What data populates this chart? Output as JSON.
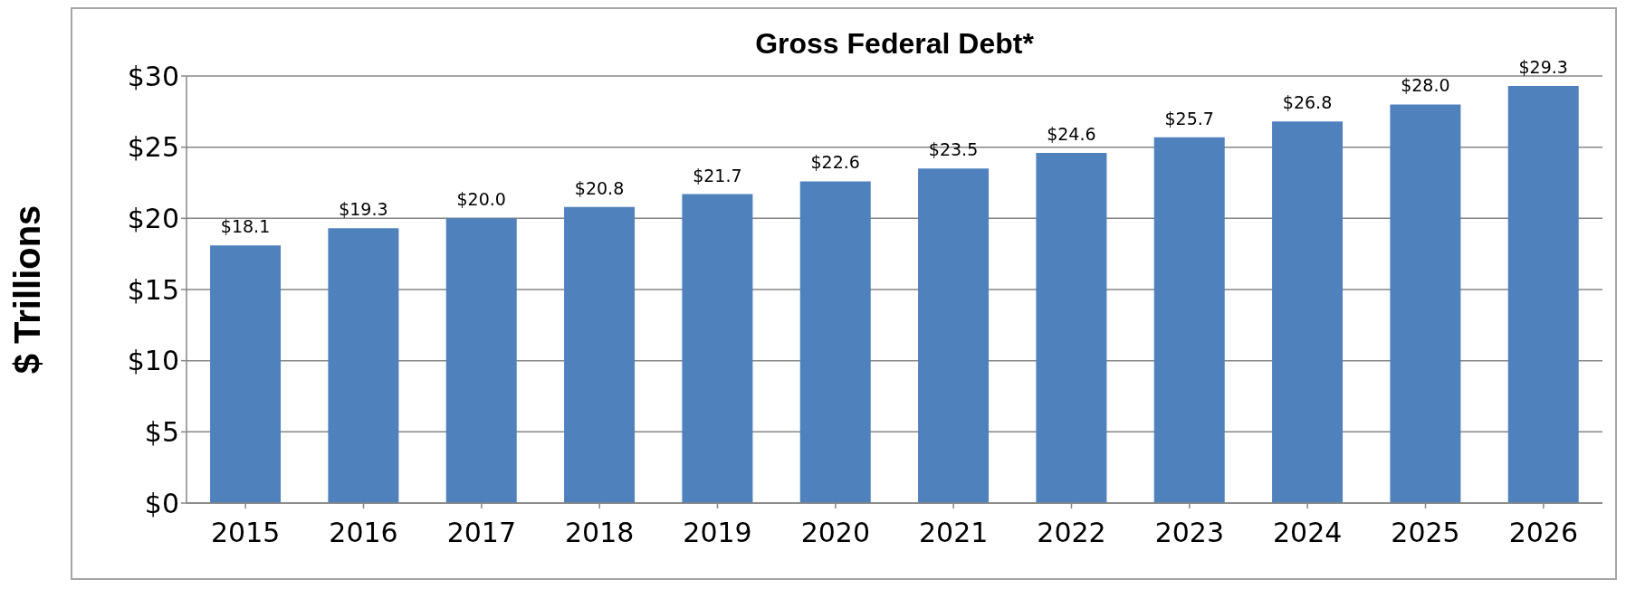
{
  "chart_data": {
    "type": "bar",
    "title": "Gross Federal Debt*",
    "ylabel": "$ Trillions",
    "categories": [
      "2015",
      "2016",
      "2017",
      "2018",
      "2019",
      "2020",
      "2021",
      "2022",
      "2023",
      "2024",
      "2025",
      "2026"
    ],
    "values": [
      18.1,
      19.3,
      20.0,
      20.8,
      21.7,
      22.6,
      23.5,
      24.6,
      25.7,
      26.8,
      28.0,
      29.3
    ],
    "value_labels": [
      "$18.1",
      "$19.3",
      "$20.0",
      "$20.8",
      "$21.7",
      "$22.6",
      "$23.5",
      "$24.6",
      "$25.7",
      "$26.8",
      "$28.0",
      "$29.3"
    ],
    "color": "#4f81bd",
    "ylim": [
      0,
      30
    ],
    "yticks": [
      {
        "value": 0,
        "label": "$0"
      },
      {
        "value": 5,
        "label": "$5"
      },
      {
        "value": 10,
        "label": "$10"
      },
      {
        "value": 15,
        "label": "$15"
      },
      {
        "value": 20,
        "label": "$20"
      },
      {
        "value": 25,
        "label": "$25"
      },
      {
        "value": 30,
        "label": "$30"
      }
    ],
    "grid": "y",
    "legend": false
  }
}
